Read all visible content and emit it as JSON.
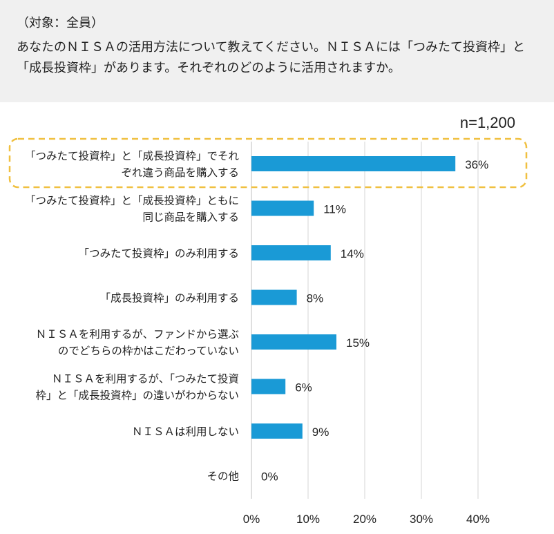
{
  "header": {
    "subject": "（対象：全員）",
    "question_line1": "あなたのＮＩＳＡの活用方法について教えてください。ＮＩＳＡには「つみたて投資枠」と",
    "question_line2": "「成長投資枠」があります。それぞれのどのように活用されますか。"
  },
  "sample_size": "n=1,200",
  "highlight_color": "#f0c040",
  "chart_data": {
    "type": "bar",
    "orientation": "horizontal",
    "categories": [
      [
        "「つみたて投資枠」と「成長投資枠」でそれ",
        "ぞれ違う商品を購入する"
      ],
      [
        "「つみたて投資枠」と「成長投資枠」ともに",
        "同じ商品を購入する"
      ],
      [
        "「つみたて投資枠」のみ利用する"
      ],
      [
        "「成長投資枠」のみ利用する"
      ],
      [
        "ＮＩＳＡを利用するが、ファンドから選ぶ",
        "のでどちらの枠かはこだわっていない"
      ],
      [
        "ＮＩＳＡを利用するが、「つみたて投資",
        "枠」と「成長投資枠」の違いがわからない"
      ],
      [
        "ＮＩＳＡは利用しない"
      ],
      [
        "その他"
      ]
    ],
    "values": [
      36,
      11,
      14,
      8,
      15,
      6,
      9,
      0
    ],
    "value_labels": [
      "36%",
      "11%",
      "14%",
      "8%",
      "15%",
      "6%",
      "9%",
      "0%"
    ],
    "xlim": [
      0,
      40
    ],
    "xticks": [
      0,
      10,
      20,
      30,
      40
    ],
    "xtick_labels": [
      "0%",
      "10%",
      "20%",
      "30%",
      "40%"
    ],
    "grid": true,
    "bar_color": "#1a9ad6",
    "highlighted_category_index": 0
  }
}
